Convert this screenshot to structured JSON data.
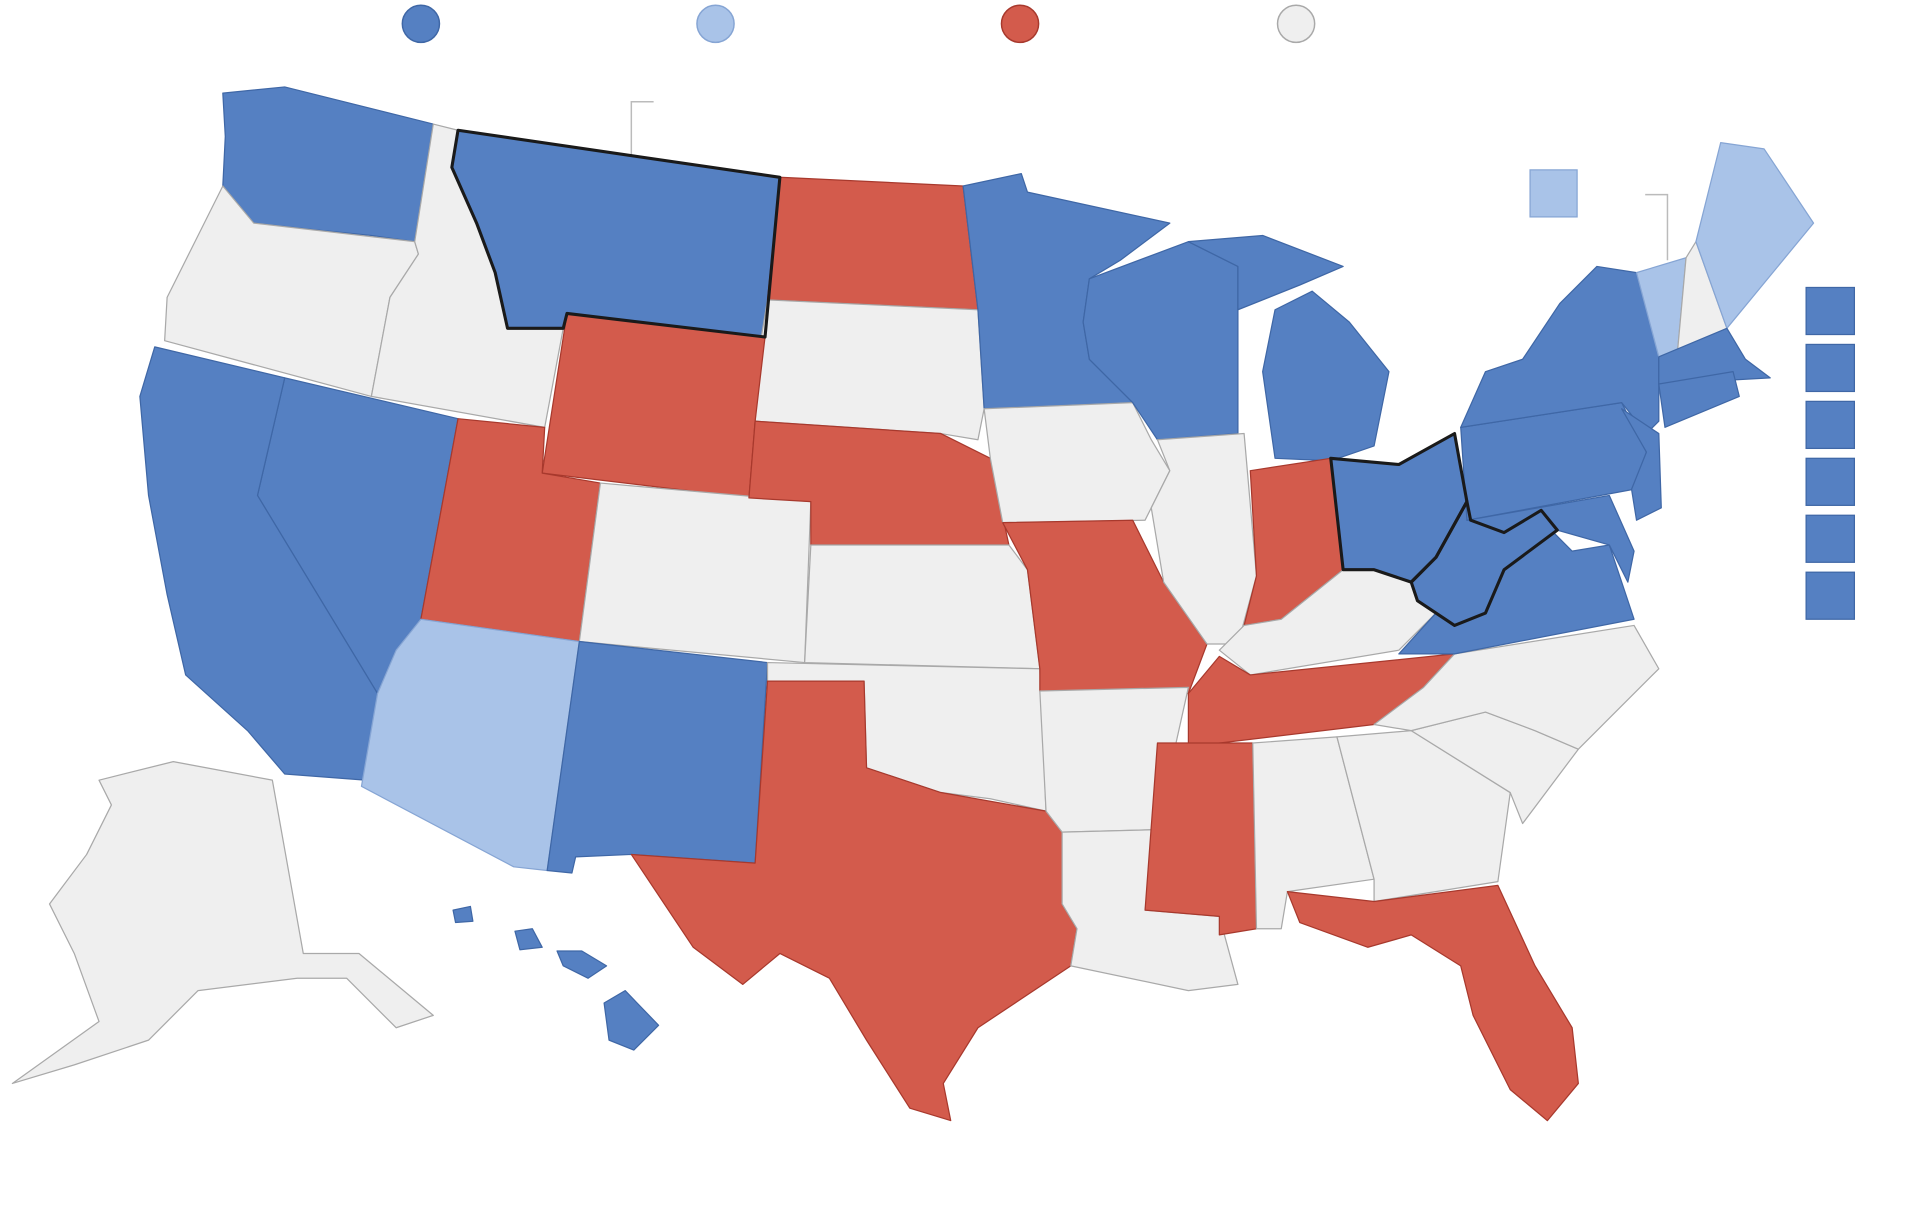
{
  "colors": {
    "dark_blue": "#5580c2",
    "light_blue": "#a9c3e8",
    "red": "#d35b4c",
    "gray": "#efefef"
  },
  "legend": [
    {
      "color_key": "dark_blue"
    },
    {
      "color_key": "light_blue"
    },
    {
      "color_key": "red"
    },
    {
      "color_key": "gray"
    }
  ],
  "highlighted_states": [
    "MT",
    "OH",
    "WV"
  ],
  "states": {
    "WA": "dark_blue",
    "OR": "gray",
    "ID": "gray",
    "MT": "dark_blue",
    "ND": "red",
    "SD": "gray",
    "WY": "red",
    "NV": "dark_blue",
    "CA": "dark_blue",
    "UT": "red",
    "CO": "gray",
    "AZ": "light_blue",
    "NM": "dark_blue",
    "NE": "red",
    "KS": "gray",
    "OK": "gray",
    "TX": "red",
    "MN": "dark_blue",
    "IA": "gray",
    "MO": "red",
    "AR": "gray",
    "LA": "gray",
    "WI": "dark_blue",
    "IL": "gray",
    "MI": "dark_blue",
    "IN": "red",
    "OH": "dark_blue",
    "KY": "gray",
    "TN": "red",
    "MS": "red",
    "AL": "gray",
    "GA": "gray",
    "FL": "red",
    "SC": "gray",
    "NC": "gray",
    "VA": "dark_blue",
    "WV": "dark_blue",
    "PA": "dark_blue",
    "NY": "dark_blue",
    "MD": "dark_blue",
    "NJ": "dark_blue",
    "VT": "light_blue",
    "NH": "gray",
    "ME": "light_blue",
    "MA": "dark_blue",
    "CT": "dark_blue",
    "AK": "gray",
    "HI": "dark_blue"
  },
  "side_boxes": {
    "single": "light_blue",
    "stack": [
      "dark_blue",
      "dark_blue",
      "dark_blue",
      "dark_blue",
      "dark_blue",
      "dark_blue"
    ]
  }
}
